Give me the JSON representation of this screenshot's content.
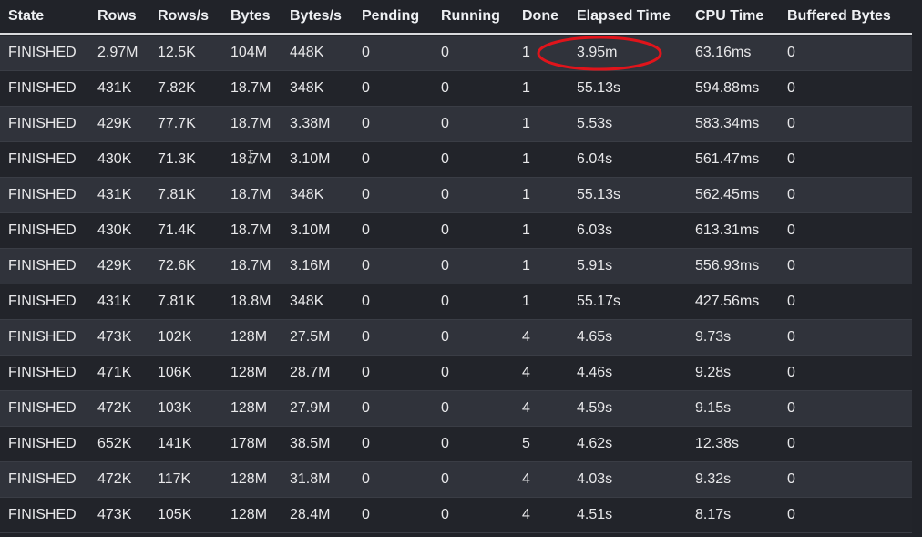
{
  "columns": {
    "state": "State",
    "rows": "Rows",
    "rows_per_s": "Rows/s",
    "bytes": "Bytes",
    "bytes_per_s": "Bytes/s",
    "pending": "Pending",
    "running": "Running",
    "done": "Done",
    "elapsed": "Elapsed Time",
    "cpu": "CPU Time",
    "buffered": "Buffered Bytes"
  },
  "rows": [
    {
      "state": "FINISHED",
      "rows": "2.97M",
      "rows_per_s": "12.5K",
      "bytes": "104M",
      "bytes_per_s": "448K",
      "pending": "0",
      "running": "0",
      "done": "1",
      "elapsed": "3.95m",
      "cpu": "63.16ms",
      "buffered": "0"
    },
    {
      "state": "FINISHED",
      "rows": "431K",
      "rows_per_s": "7.82K",
      "bytes": "18.7M",
      "bytes_per_s": "348K",
      "pending": "0",
      "running": "0",
      "done": "1",
      "elapsed": "55.13s",
      "cpu": "594.88ms",
      "buffered": "0"
    },
    {
      "state": "FINISHED",
      "rows": "429K",
      "rows_per_s": "77.7K",
      "bytes": "18.7M",
      "bytes_per_s": "3.38M",
      "pending": "0",
      "running": "0",
      "done": "1",
      "elapsed": "5.53s",
      "cpu": "583.34ms",
      "buffered": "0"
    },
    {
      "state": "FINISHED",
      "rows": "430K",
      "rows_per_s": "71.3K",
      "bytes": "18.7M",
      "bytes_per_s": "3.10M",
      "pending": "0",
      "running": "0",
      "done": "1",
      "elapsed": "6.04s",
      "cpu": "561.47ms",
      "buffered": "0"
    },
    {
      "state": "FINISHED",
      "rows": "431K",
      "rows_per_s": "7.81K",
      "bytes": "18.7M",
      "bytes_per_s": "348K",
      "pending": "0",
      "running": "0",
      "done": "1",
      "elapsed": "55.13s",
      "cpu": "562.45ms",
      "buffered": "0"
    },
    {
      "state": "FINISHED",
      "rows": "430K",
      "rows_per_s": "71.4K",
      "bytes": "18.7M",
      "bytes_per_s": "3.10M",
      "pending": "0",
      "running": "0",
      "done": "1",
      "elapsed": "6.03s",
      "cpu": "613.31ms",
      "buffered": "0"
    },
    {
      "state": "FINISHED",
      "rows": "429K",
      "rows_per_s": "72.6K",
      "bytes": "18.7M",
      "bytes_per_s": "3.16M",
      "pending": "0",
      "running": "0",
      "done": "1",
      "elapsed": "5.91s",
      "cpu": "556.93ms",
      "buffered": "0"
    },
    {
      "state": "FINISHED",
      "rows": "431K",
      "rows_per_s": "7.81K",
      "bytes": "18.8M",
      "bytes_per_s": "348K",
      "pending": "0",
      "running": "0",
      "done": "1",
      "elapsed": "55.17s",
      "cpu": "427.56ms",
      "buffered": "0"
    },
    {
      "state": "FINISHED",
      "rows": "473K",
      "rows_per_s": "102K",
      "bytes": "128M",
      "bytes_per_s": "27.5M",
      "pending": "0",
      "running": "0",
      "done": "4",
      "elapsed": "4.65s",
      "cpu": "9.73s",
      "buffered": "0"
    },
    {
      "state": "FINISHED",
      "rows": "471K",
      "rows_per_s": "106K",
      "bytes": "128M",
      "bytes_per_s": "28.7M",
      "pending": "0",
      "running": "0",
      "done": "4",
      "elapsed": "4.46s",
      "cpu": "9.28s",
      "buffered": "0"
    },
    {
      "state": "FINISHED",
      "rows": "472K",
      "rows_per_s": "103K",
      "bytes": "128M",
      "bytes_per_s": "27.9M",
      "pending": "0",
      "running": "0",
      "done": "4",
      "elapsed": "4.59s",
      "cpu": "9.15s",
      "buffered": "0"
    },
    {
      "state": "FINISHED",
      "rows": "652K",
      "rows_per_s": "141K",
      "bytes": "178M",
      "bytes_per_s": "38.5M",
      "pending": "0",
      "running": "0",
      "done": "5",
      "elapsed": "4.62s",
      "cpu": "12.38s",
      "buffered": "0"
    },
    {
      "state": "FINISHED",
      "rows": "472K",
      "rows_per_s": "117K",
      "bytes": "128M",
      "bytes_per_s": "31.8M",
      "pending": "0",
      "running": "0",
      "done": "4",
      "elapsed": "4.03s",
      "cpu": "9.32s",
      "buffered": "0"
    },
    {
      "state": "FINISHED",
      "rows": "473K",
      "rows_per_s": "105K",
      "bytes": "128M",
      "bytes_per_s": "28.4M",
      "pending": "0",
      "running": "0",
      "done": "4",
      "elapsed": "4.51s",
      "cpu": "8.17s",
      "buffered": "0"
    }
  ],
  "colors": {
    "background": "#212329",
    "row_alt": "#30333b",
    "text": "#e8e8ea",
    "highlight_circle": "#e0141b"
  },
  "icons": {
    "cursor": "text-cursor-icon"
  }
}
